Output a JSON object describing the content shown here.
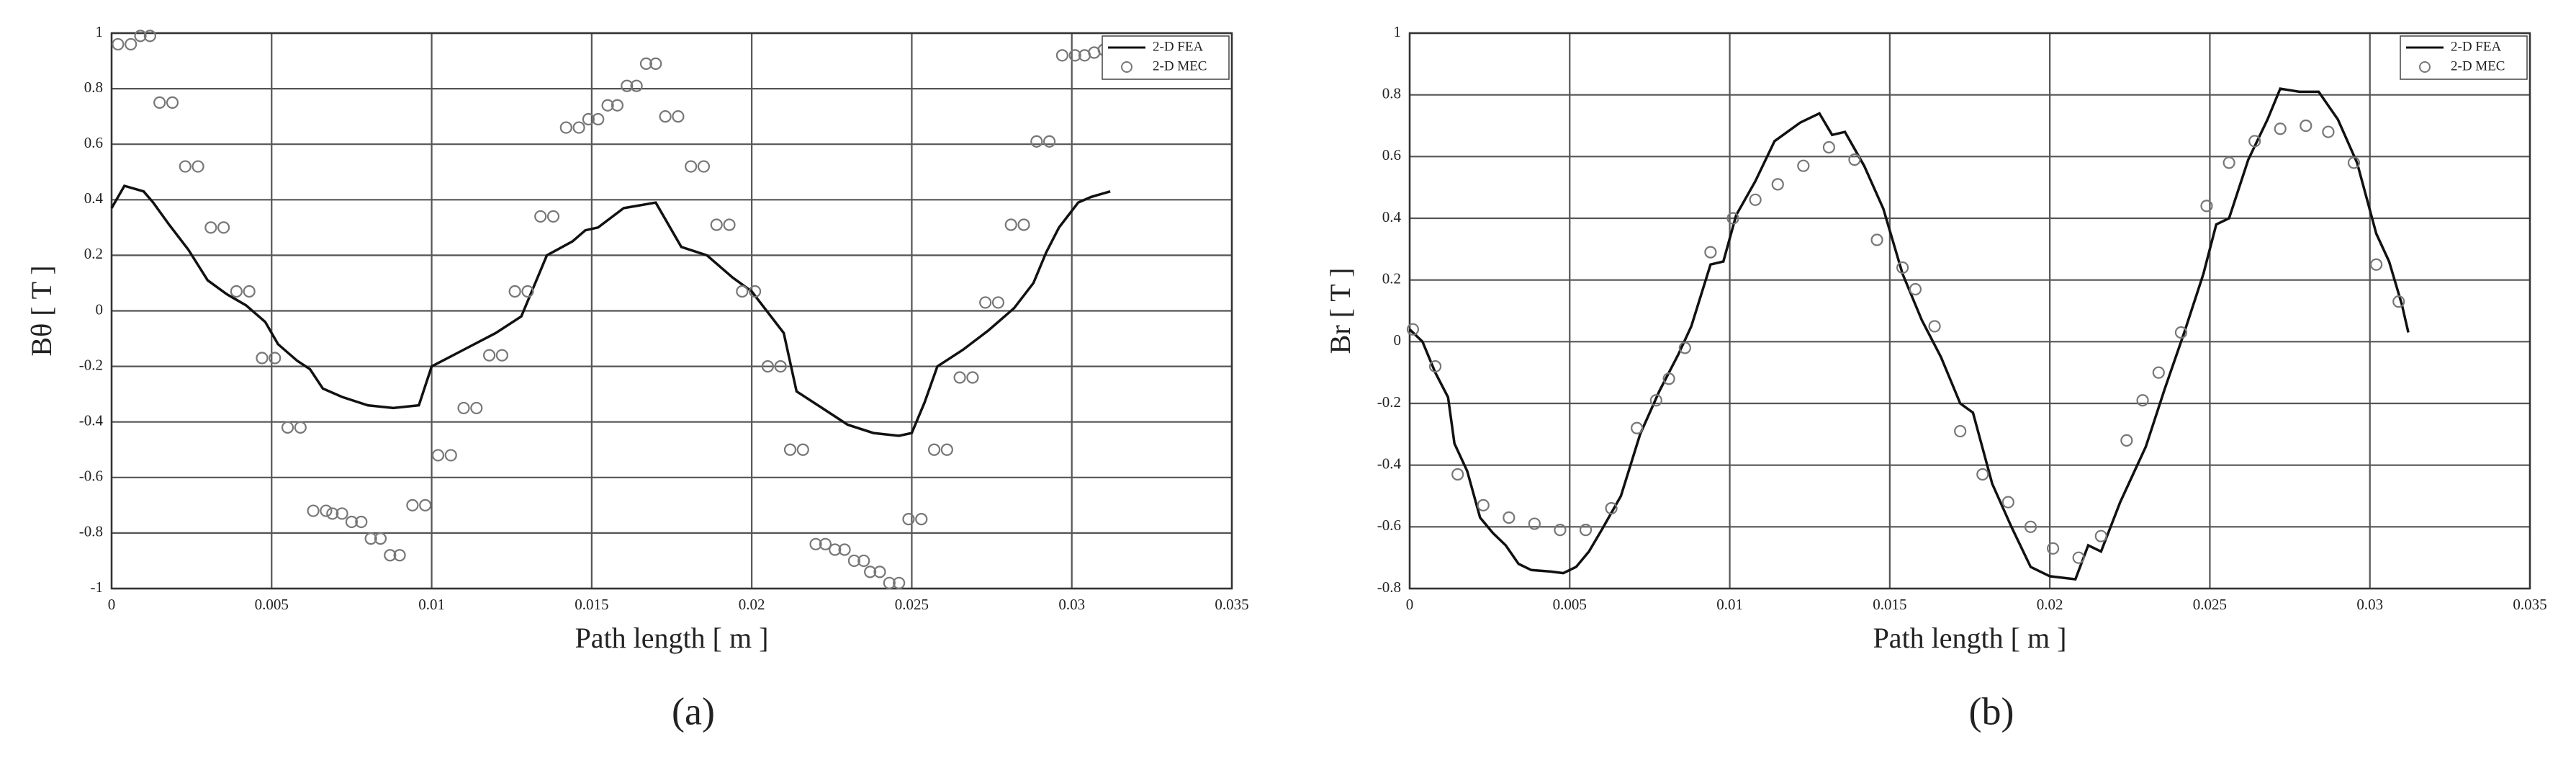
{
  "chart_data": [
    {
      "type": "line",
      "panel_label": "(a)",
      "xlabel": "Path length [ m ]",
      "ylabel": "Bθ [ T ]",
      "xlim": [
        0,
        0.035
      ],
      "xticks": [
        0,
        0.005,
        0.01,
        0.015,
        0.02,
        0.025,
        0.03,
        0.035
      ],
      "ylim": [
        -1,
        1
      ],
      "yticks": [
        -1,
        -0.8,
        -0.6,
        -0.4,
        -0.2,
        0,
        0.2,
        0.4,
        0.6,
        0.8,
        1
      ],
      "grid": true,
      "legend": "upper right",
      "series": [
        {
          "name": "2-D FEA",
          "style": "line",
          "color": "#111111",
          "x": [
            0,
            0.0004,
            0.001,
            0.0013,
            0.0018,
            0.0024,
            0.003,
            0.0036,
            0.0042,
            0.0048,
            0.0052,
            0.0058,
            0.0062,
            0.0066,
            0.0072,
            0.008,
            0.0088,
            0.0096,
            0.01,
            0.011,
            0.012,
            0.0128,
            0.0136,
            0.0144,
            0.0148,
            0.0152,
            0.016,
            0.017,
            0.0178,
            0.0186,
            0.0194,
            0.02,
            0.021,
            0.0214,
            0.0222,
            0.023,
            0.0238,
            0.0246,
            0.025,
            0.0254,
            0.0258,
            0.0266,
            0.0274,
            0.0282,
            0.0288,
            0.0292,
            0.0296,
            0.0302,
            0.0306,
            0.0312
          ],
          "values": [
            0.37,
            0.45,
            0.43,
            0.39,
            0.31,
            0.22,
            0.11,
            0.06,
            0.02,
            -0.04,
            -0.12,
            -0.18,
            -0.21,
            -0.28,
            -0.31,
            -0.34,
            -0.35,
            -0.34,
            -0.2,
            -0.14,
            -0.08,
            -0.02,
            0.2,
            0.25,
            0.29,
            0.3,
            0.37,
            0.39,
            0.23,
            0.2,
            0.12,
            0.07,
            -0.08,
            -0.29,
            -0.35,
            -0.41,
            -0.44,
            -0.45,
            -0.44,
            -0.33,
            -0.2,
            -0.14,
            -0.07,
            0.01,
            0.1,
            0.21,
            0.3,
            0.39,
            0.41,
            0.43
          ]
        },
        {
          "name": "2-D MEC",
          "style": "scatter",
          "color": "#777777",
          "x": [
            0.0002,
            0.0006,
            0.0009,
            0.0012,
            0.0015,
            0.0019,
            0.0023,
            0.0027,
            0.0031,
            0.0035,
            0.0039,
            0.0043,
            0.0047,
            0.0051,
            0.0055,
            0.0059,
            0.0063,
            0.0067,
            0.0069,
            0.0072,
            0.0075,
            0.0078,
            0.0081,
            0.0084,
            0.0087,
            0.009,
            0.0094,
            0.0098,
            0.0102,
            0.0106,
            0.011,
            0.0114,
            0.0118,
            0.0122,
            0.0126,
            0.013,
            0.0134,
            0.0138,
            0.0142,
            0.0146,
            0.0149,
            0.0152,
            0.0155,
            0.0158,
            0.0161,
            0.0164,
            0.0167,
            0.017,
            0.0173,
            0.0177,
            0.0181,
            0.0185,
            0.0189,
            0.0193,
            0.0197,
            0.0201,
            0.0205,
            0.0209,
            0.0212,
            0.0216,
            0.022,
            0.0223,
            0.0226,
            0.0229,
            0.0232,
            0.0235,
            0.0237,
            0.024,
            0.0243,
            0.0246,
            0.0249,
            0.0253,
            0.0257,
            0.0261,
            0.0265,
            0.0269,
            0.0273,
            0.0277,
            0.0281,
            0.0285,
            0.0289,
            0.0293,
            0.0297,
            0.0301,
            0.0304,
            0.0307,
            0.031
          ],
          "values": [
            0.96,
            0.96,
            0.99,
            0.99,
            0.75,
            0.75,
            0.52,
            0.52,
            0.3,
            0.3,
            0.07,
            0.07,
            -0.17,
            -0.17,
            -0.42,
            -0.42,
            -0.72,
            -0.72,
            -0.73,
            -0.73,
            -0.76,
            -0.76,
            -0.82,
            -0.82,
            -0.88,
            -0.88,
            -0.7,
            -0.7,
            -0.52,
            -0.52,
            -0.35,
            -0.35,
            -0.16,
            -0.16,
            0.07,
            0.07,
            0.34,
            0.34,
            0.66,
            0.66,
            0.69,
            0.69,
            0.74,
            0.74,
            0.81,
            0.81,
            0.89,
            0.89,
            0.7,
            0.7,
            0.52,
            0.52,
            0.31,
            0.31,
            0.07,
            0.07,
            -0.2,
            -0.2,
            -0.5,
            -0.5,
            -0.84,
            -0.84,
            -0.86,
            -0.86,
            -0.9,
            -0.9,
            -0.94,
            -0.94,
            -0.98,
            -0.98,
            -0.75,
            -0.75,
            -0.5,
            -0.5,
            -0.24,
            -0.24,
            0.03,
            0.03,
            0.31,
            0.31,
            0.61,
            0.61,
            0.92,
            0.92,
            0.92,
            0.93,
            0.94
          ]
        }
      ]
    },
    {
      "type": "line",
      "panel_label": "(b)",
      "xlabel": "Path length [ m ]",
      "ylabel": "Br [ T ]",
      "xlim": [
        0,
        0.035
      ],
      "xticks": [
        0,
        0.005,
        0.01,
        0.015,
        0.02,
        0.025,
        0.03,
        0.035
      ],
      "ylim": [
        -0.8,
        1
      ],
      "yticks": [
        -0.8,
        -0.6,
        -0.4,
        -0.2,
        0,
        0.2,
        0.4,
        0.6,
        0.8,
        1
      ],
      "grid": true,
      "legend": "upper right",
      "series": [
        {
          "name": "2-D FEA",
          "style": "line",
          "color": "#111111",
          "x": [
            0,
            0.0004,
            0.0008,
            0.0012,
            0.0014,
            0.0018,
            0.0022,
            0.0026,
            0.003,
            0.0034,
            0.0038,
            0.0044,
            0.0048,
            0.0052,
            0.0056,
            0.006,
            0.0066,
            0.0072,
            0.0078,
            0.0084,
            0.0088,
            0.0094,
            0.0098,
            0.0102,
            0.0108,
            0.0114,
            0.0122,
            0.0128,
            0.0132,
            0.0136,
            0.0142,
            0.0148,
            0.0154,
            0.016,
            0.0166,
            0.0172,
            0.0176,
            0.0182,
            0.0188,
            0.0194,
            0.02,
            0.0208,
            0.0212,
            0.0216,
            0.0222,
            0.023,
            0.0236,
            0.0242,
            0.0248,
            0.0252,
            0.0256,
            0.0262,
            0.0268,
            0.0272,
            0.0278,
            0.0284,
            0.029,
            0.0296,
            0.0302,
            0.0306,
            0.031,
            0.0312
          ],
          "values": [
            0.04,
            0,
            -0.1,
            -0.18,
            -0.33,
            -0.42,
            -0.57,
            -0.62,
            -0.66,
            -0.72,
            -0.74,
            -0.745,
            -0.75,
            -0.73,
            -0.68,
            -0.61,
            -0.5,
            -0.3,
            -0.16,
            -0.04,
            0.05,
            0.25,
            0.26,
            0.41,
            0.52,
            0.65,
            0.71,
            0.74,
            0.67,
            0.68,
            0.57,
            0.43,
            0.22,
            0.07,
            -0.05,
            -0.2,
            -0.23,
            -0.46,
            -0.6,
            -0.73,
            -0.76,
            -0.77,
            -0.66,
            -0.68,
            -0.52,
            -0.34,
            -0.15,
            0.03,
            0.22,
            0.38,
            0.4,
            0.59,
            0.72,
            0.82,
            0.81,
            0.81,
            0.72,
            0.58,
            0.35,
            0.26,
            0.12,
            0.03
          ]
        },
        {
          "name": "2-D MEC",
          "style": "scatter",
          "color": "#777777",
          "x": [
            0.0001,
            0.0008,
            0.0015,
            0.0023,
            0.0031,
            0.0039,
            0.0047,
            0.0055,
            0.0063,
            0.0071,
            0.0077,
            0.0081,
            0.0086,
            0.0094,
            0.0101,
            0.0108,
            0.0115,
            0.0123,
            0.0131,
            0.0139,
            0.0146,
            0.0154,
            0.0158,
            0.0164,
            0.0172,
            0.0179,
            0.0187,
            0.0194,
            0.0201,
            0.0209,
            0.0216,
            0.0224,
            0.0229,
            0.0234,
            0.0241,
            0.0249,
            0.0256,
            0.0264,
            0.0272,
            0.028,
            0.0287,
            0.0295,
            0.0302,
            0.0309
          ],
          "values": [
            0.04,
            -0.08,
            -0.43,
            -0.53,
            -0.57,
            -0.59,
            -0.61,
            -0.61,
            -0.54,
            -0.28,
            -0.19,
            -0.12,
            -0.02,
            0.29,
            0.4,
            0.46,
            0.51,
            0.57,
            0.63,
            0.59,
            0.33,
            0.24,
            0.17,
            0.05,
            -0.29,
            -0.43,
            -0.52,
            -0.6,
            -0.67,
            -0.7,
            -0.63,
            -0.32,
            -0.19,
            -0.1,
            0.03,
            0.44,
            0.58,
            0.65,
            0.69,
            0.7,
            0.68,
            0.58,
            0.25,
            0.13
          ]
        }
      ]
    }
  ]
}
